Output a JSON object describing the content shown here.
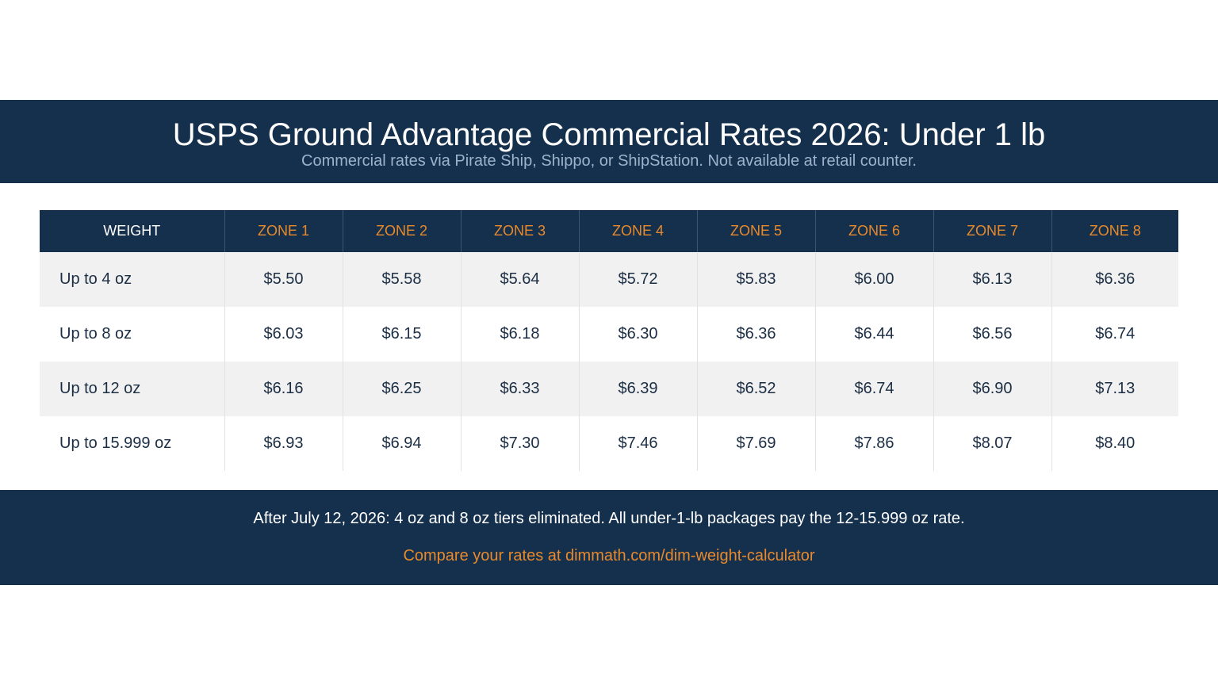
{
  "header": {
    "title": "USPS Ground Advantage Commercial Rates 2026: Under 1 lb",
    "subtitle": "Commercial rates via Pirate Ship, Shippo, or ShipStation. Not available at retail counter."
  },
  "table": {
    "columns": [
      "WEIGHT",
      "ZONE 1",
      "ZONE 2",
      "ZONE 3",
      "ZONE 4",
      "ZONE 5",
      "ZONE 6",
      "ZONE 7",
      "ZONE 8"
    ],
    "rows": [
      [
        "Up to 4 oz",
        "$5.50",
        "$5.58",
        "$5.64",
        "$5.72",
        "$5.83",
        "$6.00",
        "$6.13",
        "$6.36"
      ],
      [
        "Up to 8 oz",
        "$6.03",
        "$6.15",
        "$6.18",
        "$6.30",
        "$6.36",
        "$6.44",
        "$6.56",
        "$6.74"
      ],
      [
        "Up to 12 oz",
        "$6.16",
        "$6.25",
        "$6.33",
        "$6.39",
        "$6.52",
        "$6.74",
        "$6.90",
        "$7.13"
      ],
      [
        "Up to 15.999 oz",
        "$6.93",
        "$6.94",
        "$7.30",
        "$7.46",
        "$7.69",
        "$7.86",
        "$8.07",
        "$8.40"
      ]
    ]
  },
  "footer": {
    "note": "After July 12, 2026: 4 oz and 8 oz tiers eliminated. All under-1-lb packages pay the 12-15.999 oz rate.",
    "cta": "Compare your rates at dimmath.com/dim-weight-calculator"
  },
  "colors": {
    "navy": "#15304d",
    "accent_orange": "#e8892b",
    "row_shade": "#f1f1f1"
  }
}
